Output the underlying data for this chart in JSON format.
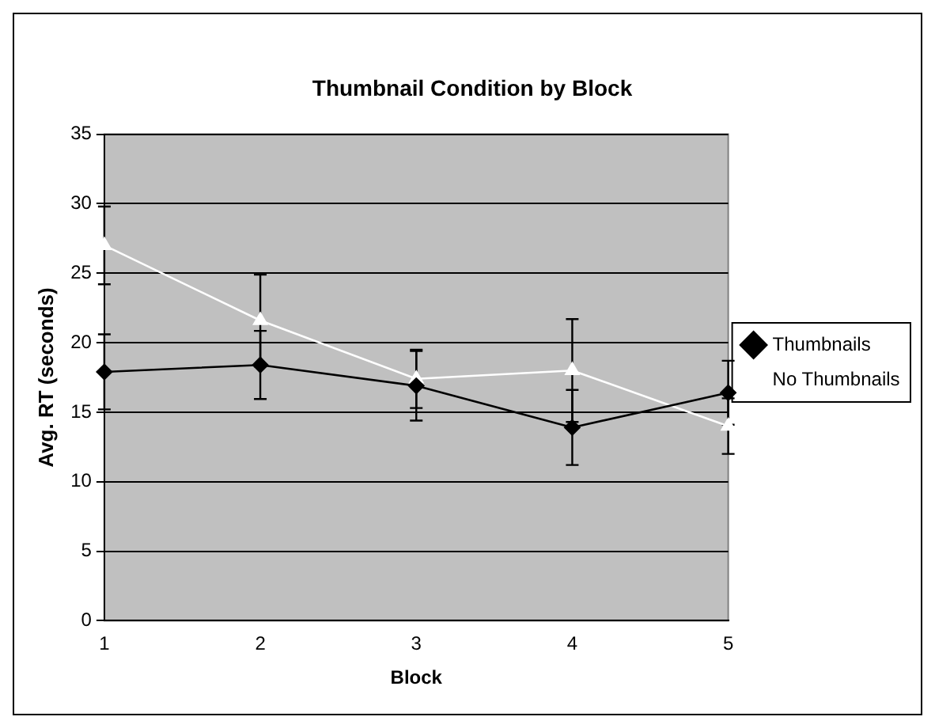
{
  "chart_data": {
    "type": "line",
    "title": "Thumbnail Condition by Block",
    "xlabel": "Block",
    "ylabel": "Avg. RT (seconds)",
    "categories": [
      "1",
      "2",
      "3",
      "4",
      "5"
    ],
    "series": [
      {
        "name": "Thumbnails",
        "color": "#000000",
        "marker": "diamond",
        "values": [
          17.9,
          18.4,
          16.9,
          13.9,
          16.4
        ],
        "errors": [
          2.7,
          2.45,
          2.5,
          2.7,
          2.3
        ]
      },
      {
        "name": "No Thumbnails",
        "color": "#ffffff",
        "marker": "triangle",
        "values": [
          27.0,
          21.6,
          17.4,
          18.0,
          14.0
        ],
        "errors": [
          2.8,
          3.3,
          2.1,
          3.7,
          2.0
        ]
      }
    ],
    "ylim": [
      0,
      35
    ],
    "yticks": [
      0,
      5,
      10,
      15,
      20,
      25,
      30,
      35
    ],
    "grid": "y",
    "legend": "right",
    "line_style": "solid"
  }
}
